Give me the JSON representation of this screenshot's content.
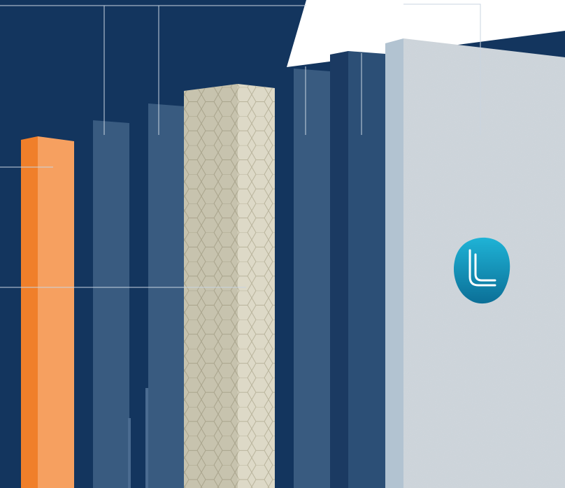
{
  "scene": {
    "background": "#13355e",
    "leader_line_color": "#c9d4e0"
  },
  "panels": [
    {
      "id": "orange-panel",
      "material": "orange",
      "face": "#f6a060",
      "side": "#f07f2a"
    },
    {
      "id": "blue-panel-1",
      "material": "blue",
      "face": "#395b80",
      "side": "#2a4c72"
    },
    {
      "id": "blue-panel-2",
      "material": "blue",
      "face": "#395b80",
      "side": "#2a4c72"
    },
    {
      "id": "honeycomb-panel",
      "material": "honeycomb",
      "face": "#ddd9c7",
      "side": "#c7c3ae"
    },
    {
      "id": "blue-panel-3",
      "material": "blue",
      "face": "#395b80",
      "side": "#2a4c72"
    },
    {
      "id": "blue-panel-4",
      "material": "dark-blue",
      "face": "#2c4f76",
      "side": "#1b3a62"
    },
    {
      "id": "stone-panel",
      "material": "stone",
      "face": "#cfd6dc",
      "side": "#b2c3d1"
    }
  ],
  "logo": {
    "icon": "stacked-l-logo-icon",
    "gradient_top": "#1fb3d6",
    "gradient_bottom": "#0b6f97"
  }
}
